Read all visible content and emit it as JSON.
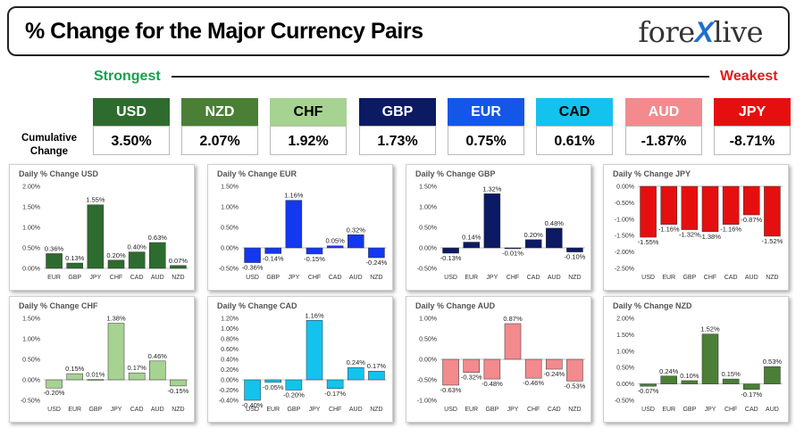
{
  "header": {
    "title": "% Change for the Major Currency Pairs",
    "logo_left": "fore",
    "logo_x": "X",
    "logo_right": "live"
  },
  "ranking": {
    "strongest_label": "Strongest",
    "weakest_label": "Weakest",
    "cumulative_label_1": "Cumulative",
    "cumulative_label_2": "Change"
  },
  "tiles": [
    {
      "ccy": "USD",
      "value": "3.50%",
      "color": "#2e6b2f",
      "text_color": "#ffffff"
    },
    {
      "ccy": "NZD",
      "value": "2.07%",
      "color": "#4a7f35",
      "text_color": "#ffffff"
    },
    {
      "ccy": "CHF",
      "value": "1.92%",
      "color": "#a6d292",
      "text_color": "#000000"
    },
    {
      "ccy": "GBP",
      "value": "1.73%",
      "color": "#0c1a63",
      "text_color": "#ffffff"
    },
    {
      "ccy": "EUR",
      "value": "0.75%",
      "color": "#1457e8",
      "text_color": "#ffffff"
    },
    {
      "ccy": "CAD",
      "value": "0.61%",
      "color": "#14c2ee",
      "text_color": "#000000"
    },
    {
      "ccy": "AUD",
      "value": "-1.87%",
      "color": "#f28a8e",
      "text_color": "#ffffff"
    },
    {
      "ccy": "JPY",
      "value": "-8.71%",
      "color": "#e60f0f",
      "text_color": "#ffffff"
    }
  ],
  "chart_data": [
    {
      "type": "bar",
      "title": "Daily % Change USD",
      "color": "#2e6b2f",
      "categories": [
        "EUR",
        "GBP",
        "JPY",
        "CHF",
        "CAD",
        "AUD",
        "NZD"
      ],
      "values": [
        0.36,
        0.13,
        1.55,
        0.2,
        0.4,
        0.63,
        0.07
      ],
      "labels": [
        "0.36%",
        "0.13%",
        "1.55%",
        "0.20%",
        "0.40%",
        "0.63%",
        "0.07%"
      ],
      "yticks": [
        "0.00%",
        "0.50%",
        "1.00%",
        "1.50%",
        "2.00%"
      ],
      "ylim": [
        0,
        2
      ]
    },
    {
      "type": "bar",
      "title": "Daily % Change EUR",
      "color": "#1437f0",
      "categories": [
        "USD",
        "GBP",
        "JPY",
        "CHF",
        "CAD",
        "AUD",
        "NZD"
      ],
      "values": [
        -0.36,
        -0.14,
        1.16,
        -0.15,
        0.05,
        0.32,
        -0.24
      ],
      "labels": [
        "-0.36%",
        "-0.14%",
        "1.16%",
        "-0.15%",
        "0.05%",
        "0.32%",
        "-0.24%"
      ],
      "yticks": [
        "-0.50%",
        "0.00%",
        "0.50%",
        "1.00%",
        "1.50%"
      ],
      "ylim": [
        -0.5,
        1.5
      ]
    },
    {
      "type": "bar",
      "title": "Daily % Change GBP",
      "color": "#0c1a63",
      "categories": [
        "USD",
        "EUR",
        "JPY",
        "CHF",
        "CAD",
        "AUD",
        "NZD"
      ],
      "values": [
        -0.13,
        0.14,
        1.32,
        -0.01,
        0.2,
        0.48,
        -0.1
      ],
      "labels": [
        "-0.13%",
        "0.14%",
        "1.32%",
        "-0.01%",
        "0.20%",
        "0.48%",
        "-0.10%"
      ],
      "yticks": [
        "-0.50%",
        "0.00%",
        "0.50%",
        "1.00%",
        "1.50%"
      ],
      "ylim": [
        -0.5,
        1.5
      ]
    },
    {
      "type": "bar",
      "title": "Daily % Change JPY",
      "color": "#e60f0f",
      "categories": [
        "USD",
        "EUR",
        "GBP",
        "CHF",
        "CAD",
        "AUD",
        "NZD"
      ],
      "values": [
        -1.55,
        -1.16,
        -1.32,
        -1.38,
        -1.16,
        -0.87,
        -1.52
      ],
      "labels": [
        "-1.55%",
        "-1.16%",
        "-1.32%",
        "-1.38%",
        "-1.16%",
        "-0.87%",
        "-1.52%"
      ],
      "yticks": [
        "-2.50%",
        "-2.00%",
        "-1.50%",
        "-1.00%",
        "-0.50%",
        "0.00%"
      ],
      "ylim": [
        -2.5,
        0
      ]
    },
    {
      "type": "bar",
      "title": "Daily % Change CHF",
      "color": "#a6d292",
      "categories": [
        "USD",
        "EUR",
        "GBP",
        "JPY",
        "CAD",
        "AUD",
        "NZD"
      ],
      "values": [
        -0.2,
        0.15,
        0.01,
        1.38,
        0.17,
        0.46,
        -0.15
      ],
      "labels": [
        "-0.20%",
        "0.15%",
        "0.01%",
        "1.38%",
        "0.17%",
        "0.46%",
        "-0.15%"
      ],
      "yticks": [
        "-0.50%",
        "0.00%",
        "0.50%",
        "1.00%",
        "1.50%"
      ],
      "ylim": [
        -0.5,
        1.5
      ]
    },
    {
      "type": "bar",
      "title": "Daily % Change CAD",
      "color": "#14c2ee",
      "categories": [
        "USD",
        "EUR",
        "GBP",
        "JPY",
        "CHF",
        "AUD",
        "NZD"
      ],
      "values": [
        -0.4,
        -0.05,
        -0.2,
        1.16,
        -0.17,
        0.24,
        0.17
      ],
      "labels": [
        "-0.40%",
        "-0.05%",
        "-0.20%",
        "1.16%",
        "-0.17%",
        "0.24%",
        "0.17%"
      ],
      "yticks": [
        "-0.40%",
        "-0.20%",
        "0.00%",
        "0.20%",
        "0.40%",
        "0.60%",
        "0.80%",
        "1.00%",
        "1.20%"
      ],
      "ylim": [
        -0.4,
        1.2
      ]
    },
    {
      "type": "bar",
      "title": "Daily % Change AUD",
      "color": "#f28a8e",
      "categories": [
        "USD",
        "EUR",
        "GBP",
        "JPY",
        "CHF",
        "CAD",
        "NZD"
      ],
      "values": [
        -0.63,
        -0.32,
        -0.48,
        0.87,
        -0.46,
        -0.24,
        -0.53
      ],
      "labels": [
        "-0.63%",
        "-0.32%",
        "-0.48%",
        "0.87%",
        "-0.46%",
        "-0.24%",
        "-0.53%"
      ],
      "yticks": [
        "-1.00%",
        "-0.50%",
        "0.00%",
        "0.50%",
        "1.00%"
      ],
      "ylim": [
        -1,
        1
      ]
    },
    {
      "type": "bar",
      "title": "Daily % Change NZD",
      "color": "#4a7f35",
      "categories": [
        "USD",
        "EUR",
        "GBP",
        "JPY",
        "CHF",
        "CAD",
        "AUD"
      ],
      "values": [
        -0.07,
        0.24,
        0.1,
        1.52,
        0.15,
        -0.17,
        0.53
      ],
      "labels": [
        "-0.07%",
        "0.24%",
        "0.10%",
        "1.52%",
        "0.15%",
        "-0.17%",
        "0.53%"
      ],
      "yticks": [
        "-0.50%",
        "0.00%",
        "0.50%",
        "1.00%",
        "1.50%",
        "2.00%"
      ],
      "ylim": [
        -0.5,
        2
      ]
    }
  ]
}
